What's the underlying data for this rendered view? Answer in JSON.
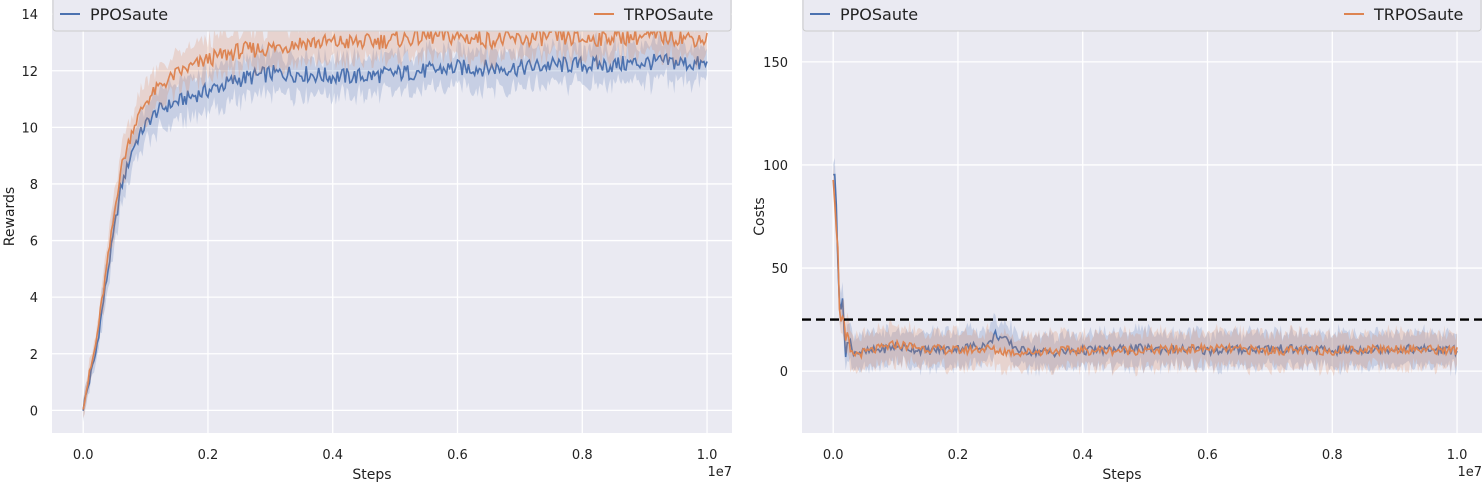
{
  "chart_data": [
    {
      "type": "line",
      "xlabel": "Steps",
      "ylabel": "Rewards",
      "x_offset_text": "1e7",
      "xlim": [
        -0.05,
        1.04
      ],
      "ylim": [
        -0.8,
        14.5
      ],
      "xticks": [
        0.0,
        0.2,
        0.4,
        0.6,
        0.8,
        1.0
      ],
      "xtick_labels": [
        "0.0",
        "0.2",
        "0.4",
        "0.6",
        "0.8",
        "1.0"
      ],
      "yticks": [
        0,
        2,
        4,
        6,
        8,
        10,
        12,
        14
      ],
      "ytick_labels": [
        "0",
        "2",
        "4",
        "6",
        "8",
        "10",
        "12",
        "14"
      ],
      "grid": true,
      "legend": {
        "placement": "top",
        "entries": [
          "PPOSaute",
          "TRPOSaute"
        ]
      },
      "series": [
        {
          "name": "PPOSaute",
          "color": "#4c72b0",
          "x": [
            0.0,
            0.02,
            0.04,
            0.06,
            0.08,
            0.1,
            0.12,
            0.15,
            0.2,
            0.25,
            0.3,
            0.35,
            0.4,
            0.45,
            0.5,
            0.55,
            0.6,
            0.65,
            0.7,
            0.75,
            0.8,
            0.85,
            0.9,
            0.95,
            1.0
          ],
          "y": [
            0.1,
            2.0,
            5.0,
            7.8,
            9.3,
            10.1,
            10.6,
            10.9,
            11.3,
            11.7,
            11.9,
            11.9,
            11.8,
            11.8,
            11.9,
            12.0,
            12.1,
            12.1,
            12.1,
            12.2,
            12.2,
            12.2,
            12.3,
            12.3,
            12.2
          ],
          "band": 0.75
        },
        {
          "name": "TRPOSaute",
          "color": "#dd8452",
          "x": [
            0.0,
            0.02,
            0.04,
            0.06,
            0.08,
            0.1,
            0.12,
            0.15,
            0.2,
            0.25,
            0.3,
            0.35,
            0.4,
            0.45,
            0.5,
            0.55,
            0.6,
            0.65,
            0.7,
            0.75,
            0.8,
            0.85,
            0.9,
            0.95,
            1.0
          ],
          "y": [
            0.2,
            2.3,
            5.4,
            8.5,
            10.0,
            10.9,
            11.4,
            11.9,
            12.4,
            12.7,
            12.8,
            13.0,
            13.0,
            13.0,
            13.1,
            13.2,
            13.2,
            13.1,
            13.1,
            13.2,
            13.1,
            13.2,
            13.2,
            13.2,
            13.1
          ],
          "band": 0.75
        }
      ]
    },
    {
      "type": "line",
      "xlabel": "Steps",
      "ylabel": "Costs",
      "x_offset_text": "1e7",
      "xlim": [
        -0.05,
        1.04
      ],
      "ylim": [
        -30,
        180
      ],
      "xticks": [
        0.0,
        0.2,
        0.4,
        0.6,
        0.8,
        1.0
      ],
      "xtick_labels": [
        "0.0",
        "0.2",
        "0.4",
        "0.6",
        "0.8",
        "1.0"
      ],
      "yticks": [
        0,
        50,
        100,
        150
      ],
      "ytick_labels": [
        "0",
        "50",
        "100",
        "150"
      ],
      "grid": true,
      "threshold": 25,
      "legend": {
        "placement": "top",
        "entries": [
          "PPOSaute",
          "TRPOSaute"
        ]
      },
      "series": [
        {
          "name": "PPOSaute",
          "color": "#4c72b0",
          "x": [
            0.0,
            0.005,
            0.01,
            0.02,
            0.03,
            0.05,
            0.1,
            0.15,
            0.2,
            0.25,
            0.26,
            0.3,
            0.35,
            0.4,
            0.5,
            0.6,
            0.7,
            0.8,
            0.9,
            1.0
          ],
          "y": [
            100,
            80,
            40,
            15,
            10,
            9,
            12,
            10,
            11,
            13,
            18,
            10,
            9,
            10,
            11,
            10,
            11,
            10,
            11,
            10
          ],
          "band": 9
        },
        {
          "name": "TRPOSaute",
          "color": "#dd8452",
          "x": [
            0.0,
            0.005,
            0.01,
            0.02,
            0.03,
            0.05,
            0.1,
            0.15,
            0.2,
            0.25,
            0.26,
            0.3,
            0.35,
            0.4,
            0.5,
            0.6,
            0.7,
            0.8,
            0.9,
            1.0
          ],
          "y": [
            100,
            75,
            35,
            12,
            8,
            9,
            13,
            11,
            10,
            11,
            10,
            9,
            10,
            10,
            10,
            11,
            10,
            10,
            11,
            10
          ],
          "band": 9
        }
      ]
    }
  ]
}
